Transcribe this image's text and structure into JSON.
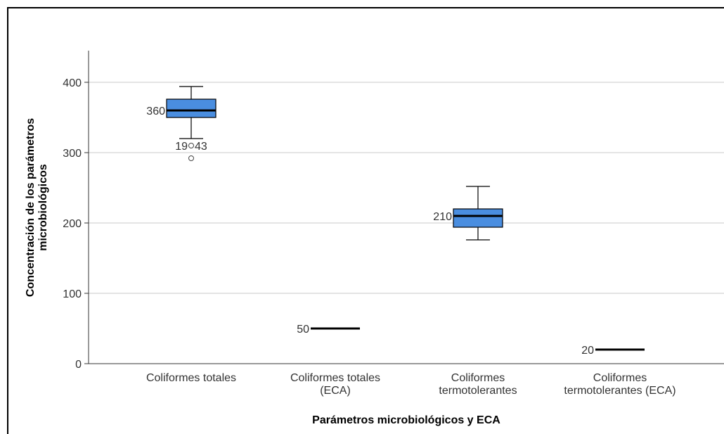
{
  "chart_data": {
    "type": "box",
    "title": "",
    "xlabel": "Parámetros microbiológicos y ECA",
    "ylabel_lines": [
      "Concentración de los parámetros",
      "microbiológicos"
    ],
    "ylim": [
      0,
      445
    ],
    "yticks": [
      0,
      100,
      200,
      300,
      400
    ],
    "grid": "horizontal",
    "box_color": "#4a8ee0",
    "categories": [
      [
        "Coliformes totales"
      ],
      [
        "Coliformes totales",
        "(ECA)"
      ],
      [
        "Coliformes",
        "termotolerantes"
      ],
      [
        "Coliformes",
        "termotolerantes (ECA)"
      ]
    ],
    "boxes": [
      {
        "kind": "box",
        "whisker_low": 320,
        "q1": 350,
        "median": 360,
        "q3": 376,
        "whisker_high": 394,
        "median_label": "360",
        "outliers": [
          {
            "value": 310,
            "label": "19"
          },
          {
            "value": 292,
            "label": ""
          }
        ],
        "extra_labels": [
          "43"
        ]
      },
      {
        "kind": "line",
        "value": 50,
        "median_label": "50"
      },
      {
        "kind": "box",
        "whisker_low": 176,
        "q1": 194,
        "median": 210,
        "q3": 220,
        "whisker_high": 252,
        "median_label": "210",
        "outliers": [],
        "extra_labels": []
      },
      {
        "kind": "line",
        "value": 20,
        "median_label": "20"
      }
    ]
  }
}
